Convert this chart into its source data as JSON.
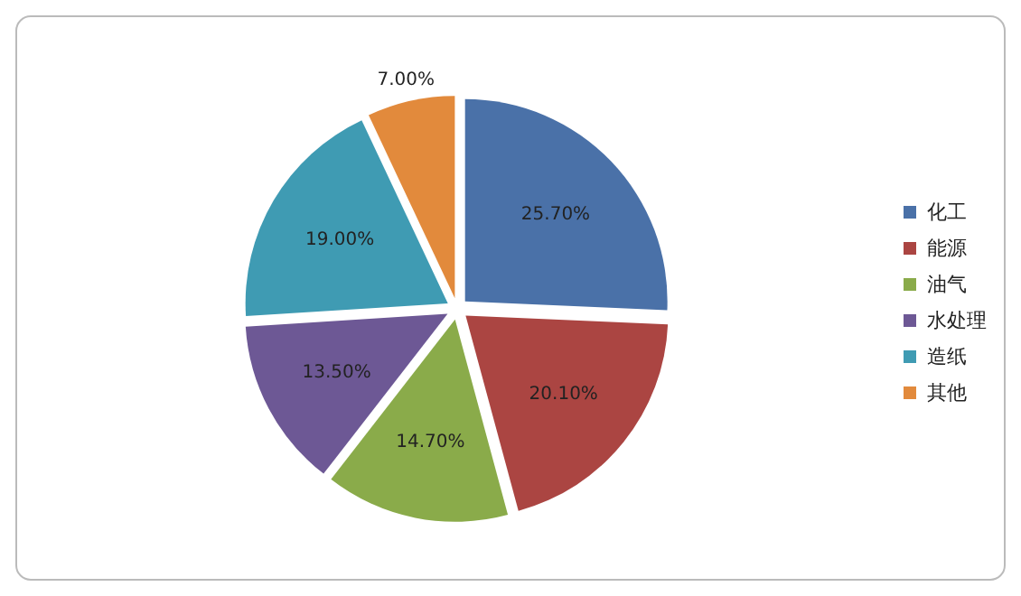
{
  "chart_data": {
    "type": "pie",
    "categories": [
      "化工",
      "能源",
      "油气",
      "水处理",
      "造纸",
      "其他"
    ],
    "values": [
      25.7,
      20.1,
      14.7,
      13.5,
      19.0,
      7.0
    ],
    "value_labels": [
      "25.70%",
      "20.10%",
      "14.70%",
      "13.50%",
      "19.00%",
      "7.00%"
    ],
    "colors": [
      "#4a71a8",
      "#ab4542",
      "#8aab4a",
      "#6d5895",
      "#3f9bb3",
      "#e28a3c"
    ],
    "legend": "right"
  }
}
